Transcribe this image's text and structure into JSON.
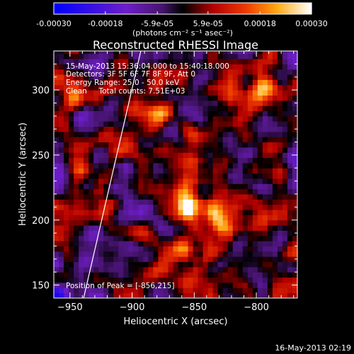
{
  "chart_data": {
    "type": "heatmap",
    "title": "Reconstructed RHESSI Image",
    "xlabel": "Heliocentric X (arcsec)",
    "ylabel": "Heliocentric Y (arcsec)",
    "xlim": [
      -963,
      -767
    ],
    "ylim": [
      140,
      330
    ],
    "x_ticks": [
      -950,
      -900,
      -850,
      -800
    ],
    "y_ticks": [
      150,
      200,
      250,
      300
    ],
    "colorbar": {
      "min": -0.0003,
      "max": 0.0003,
      "ticks": [
        "-0.00030",
        "-0.00018",
        "-5.9e-05",
        "5.9e-05",
        "0.00018",
        "0.00030"
      ],
      "tick_values": [
        -0.0003,
        -0.00018,
        -5.9e-05,
        5.9e-05,
        0.00018,
        0.0003
      ],
      "unit_label": "(photons cm⁻² s⁻¹ asec⁻²)"
    },
    "annotations": [
      "15-May-2013 15:36:04.000 to 15:40:18.000",
      "Detectors: 3F 5F 6F 7F 8F 9F, Att 0",
      "Energy Range: 25.0 - 50.0 keV",
      "Clean     Total counts: 7.51E+03",
      "Position of Peak = [-856,215]"
    ],
    "peak": {
      "x": -856,
      "y": 215
    },
    "limb_line": [
      [
        -939,
        140
      ],
      [
        -893,
        330
      ]
    ],
    "sources": [
      {
        "x": -856,
        "y": 215,
        "amp": 0.0003,
        "sx": 8,
        "sy": 12
      },
      {
        "x": -826,
        "y": 205,
        "amp": 0.00022,
        "sx": 9,
        "sy": 14
      },
      {
        "x": -862,
        "y": 175,
        "amp": 0.00016,
        "sx": 10,
        "sy": 7
      },
      {
        "x": -905,
        "y": 255,
        "amp": 0.00012,
        "sx": 9,
        "sy": 7
      },
      {
        "x": -880,
        "y": 282,
        "amp": 0.00011,
        "sx": 14,
        "sy": 6
      },
      {
        "x": -948,
        "y": 295,
        "amp": 0.0001,
        "sx": 7,
        "sy": 9
      },
      {
        "x": -790,
        "y": 300,
        "amp": 9e-05,
        "sx": 8,
        "sy": 8
      }
    ]
  },
  "footer": {
    "timestamp": "16-May-2013 02:19"
  }
}
